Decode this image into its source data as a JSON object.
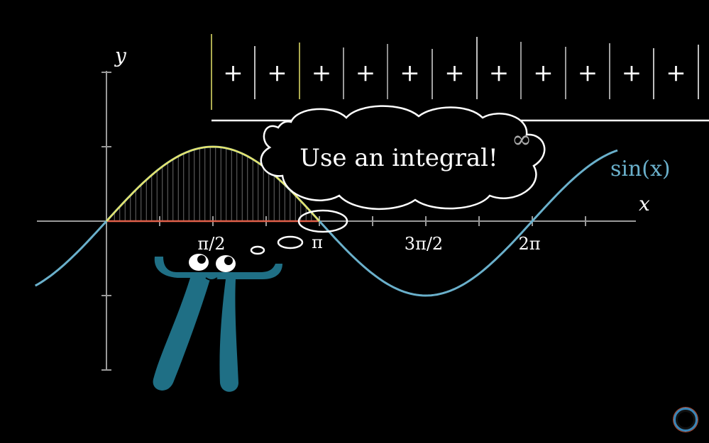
{
  "colors": {
    "axis": "#9a9a9a",
    "sine": "#6ab0cb",
    "arch": "#e6e36a",
    "baseline": "#e0604a",
    "bar": "#8a8a8a",
    "pi_body": "#1f6f85",
    "white": "#ffffff"
  },
  "axes": {
    "y_label": "y",
    "x_label": "x",
    "ticks": [
      {
        "label": "π/2"
      },
      {
        "label": "π"
      },
      {
        "label": "3π/2"
      },
      {
        "label": "2π"
      }
    ]
  },
  "curve": {
    "label": "sin(x)"
  },
  "sum_row": {
    "plus_symbol": "+",
    "plus_count": 11,
    "infinity_symbol": "∞"
  },
  "thought_bubble": {
    "text": "Use an integral!"
  },
  "character": {
    "name": "pi-creature",
    "icon": "pi-creature-icon"
  },
  "logo": {
    "icon": "3b1b-logo-icon"
  }
}
